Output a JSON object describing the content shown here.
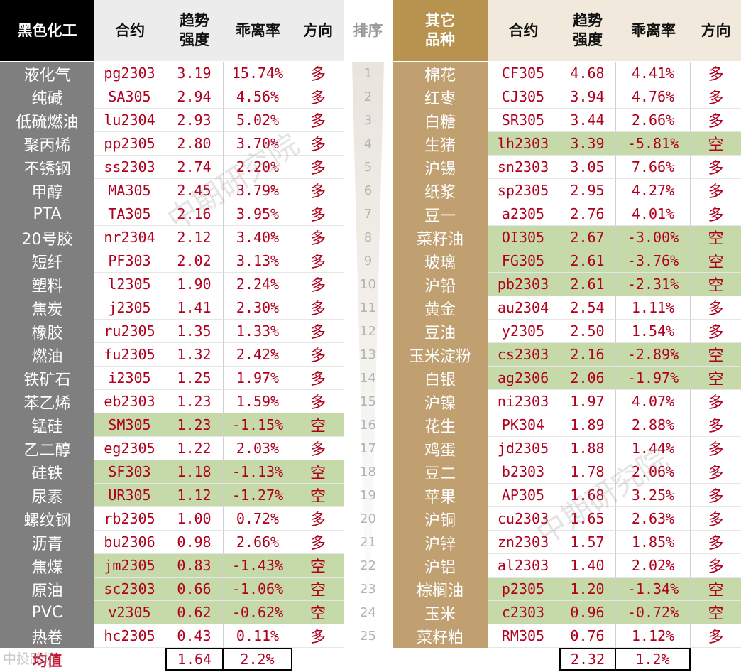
{
  "colors": {
    "accent": "#b0001e",
    "green_highlight": "#c5d9a9",
    "left_name_bg": "#7f7f7f",
    "right_name_bg": "#c0a070",
    "header_left_corner": "#000000",
    "header_right_corner": "#b8934f"
  },
  "headers": {
    "left_title": "黑色化工",
    "contract": "合约",
    "trend_strength": [
      "趋势",
      "强度"
    ],
    "deviation": "乖离率",
    "direction": "方向",
    "rank": "排序",
    "right_title": [
      "其它",
      "品种"
    ]
  },
  "left_rows": [
    {
      "name": "液化气",
      "code": "pg2303",
      "trend": "3.19",
      "dev": "15.74%",
      "dir": "多"
    },
    {
      "name": "纯碱",
      "code": "SA305",
      "trend": "2.94",
      "dev": "4.56%",
      "dir": "多"
    },
    {
      "name": "低硫燃油",
      "code": "lu2304",
      "trend": "2.93",
      "dev": "5.02%",
      "dir": "多"
    },
    {
      "name": "聚丙烯",
      "code": "pp2305",
      "trend": "2.80",
      "dev": "3.70%",
      "dir": "多"
    },
    {
      "name": "不锈钢",
      "code": "ss2303",
      "trend": "2.74",
      "dev": "2.20%",
      "dir": "多"
    },
    {
      "name": "甲醇",
      "code": "MA305",
      "trend": "2.45",
      "dev": "3.79%",
      "dir": "多"
    },
    {
      "name": "PTA",
      "code": "TA305",
      "trend": "2.16",
      "dev": "3.95%",
      "dir": "多"
    },
    {
      "name": "20号胶",
      "code": "nr2304",
      "trend": "2.12",
      "dev": "3.40%",
      "dir": "多"
    },
    {
      "name": "短纤",
      "code": "PF303",
      "trend": "2.02",
      "dev": "3.13%",
      "dir": "多"
    },
    {
      "name": "塑料",
      "code": "l2305",
      "trend": "1.90",
      "dev": "2.24%",
      "dir": "多"
    },
    {
      "name": "焦炭",
      "code": "j2305",
      "trend": "1.41",
      "dev": "2.30%",
      "dir": "多"
    },
    {
      "name": "橡胶",
      "code": "ru2305",
      "trend": "1.35",
      "dev": "1.33%",
      "dir": "多"
    },
    {
      "name": "燃油",
      "code": "fu2305",
      "trend": "1.32",
      "dev": "2.42%",
      "dir": "多"
    },
    {
      "name": "铁矿石",
      "code": "i2305",
      "trend": "1.25",
      "dev": "1.97%",
      "dir": "多"
    },
    {
      "name": "苯乙烯",
      "code": "eb2303",
      "trend": "1.23",
      "dev": "1.59%",
      "dir": "多"
    },
    {
      "name": "锰硅",
      "code": "SM305",
      "trend": "1.23",
      "dev": "-1.15%",
      "dir": "空"
    },
    {
      "name": "乙二醇",
      "code": "eg2305",
      "trend": "1.22",
      "dev": "2.03%",
      "dir": "多"
    },
    {
      "name": "硅铁",
      "code": "SF303",
      "trend": "1.18",
      "dev": "-1.13%",
      "dir": "空"
    },
    {
      "name": "尿素",
      "code": "UR305",
      "trend": "1.12",
      "dev": "-1.27%",
      "dir": "空"
    },
    {
      "name": "螺纹钢",
      "code": "rb2305",
      "trend": "1.00",
      "dev": "0.72%",
      "dir": "多"
    },
    {
      "name": "沥青",
      "code": "bu2306",
      "trend": "0.98",
      "dev": "2.66%",
      "dir": "多"
    },
    {
      "name": "焦煤",
      "code": "jm2305",
      "trend": "0.83",
      "dev": "-1.43%",
      "dir": "空"
    },
    {
      "name": "原油",
      "code": "sc2303",
      "trend": "0.66",
      "dev": "-1.06%",
      "dir": "空"
    },
    {
      "name": "PVC",
      "code": "v2305",
      "trend": "0.62",
      "dev": "-0.62%",
      "dir": "空"
    },
    {
      "name": "热卷",
      "code": "hc2305",
      "trend": "0.43",
      "dev": "0.11%",
      "dir": "多"
    }
  ],
  "right_rows": [
    {
      "name": "棉花",
      "code": "CF305",
      "trend": "4.68",
      "dev": "4.41%",
      "dir": "多"
    },
    {
      "name": "红枣",
      "code": "CJ305",
      "trend": "3.94",
      "dev": "4.76%",
      "dir": "多"
    },
    {
      "name": "白糖",
      "code": "SR305",
      "trend": "3.44",
      "dev": "2.66%",
      "dir": "多"
    },
    {
      "name": "生猪",
      "code": "lh2303",
      "trend": "3.39",
      "dev": "-5.81%",
      "dir": "空"
    },
    {
      "name": "沪锡",
      "code": "sn2303",
      "trend": "3.05",
      "dev": "7.66%",
      "dir": "多"
    },
    {
      "name": "纸浆",
      "code": "sp2305",
      "trend": "2.95",
      "dev": "4.27%",
      "dir": "多"
    },
    {
      "name": "豆一",
      "code": "a2305",
      "trend": "2.76",
      "dev": "4.01%",
      "dir": "多"
    },
    {
      "name": "菜籽油",
      "code": "OI305",
      "trend": "2.67",
      "dev": "-3.00%",
      "dir": "空"
    },
    {
      "name": "玻璃",
      "code": "FG305",
      "trend": "2.61",
      "dev": "-3.76%",
      "dir": "空"
    },
    {
      "name": "沪铅",
      "code": "pb2303",
      "trend": "2.61",
      "dev": "-2.31%",
      "dir": "空"
    },
    {
      "name": "黄金",
      "code": "au2304",
      "trend": "2.54",
      "dev": "1.11%",
      "dir": "多"
    },
    {
      "name": "豆油",
      "code": "y2305",
      "trend": "2.50",
      "dev": "1.54%",
      "dir": "多"
    },
    {
      "name": "玉米淀粉",
      "code": "cs2303",
      "trend": "2.16",
      "dev": "-2.89%",
      "dir": "空"
    },
    {
      "name": "白银",
      "code": "ag2306",
      "trend": "2.06",
      "dev": "-1.97%",
      "dir": "空"
    },
    {
      "name": "沪镍",
      "code": "ni2303",
      "trend": "1.97",
      "dev": "4.07%",
      "dir": "多"
    },
    {
      "name": "花生",
      "code": "PK304",
      "trend": "1.89",
      "dev": "2.88%",
      "dir": "多"
    },
    {
      "name": "鸡蛋",
      "code": "jd2305",
      "trend": "1.88",
      "dev": "1.44%",
      "dir": "多"
    },
    {
      "name": "豆二",
      "code": "b2303",
      "trend": "1.78",
      "dev": "2.06%",
      "dir": "多"
    },
    {
      "name": "苹果",
      "code": "AP305",
      "trend": "1.68",
      "dev": "3.25%",
      "dir": "多"
    },
    {
      "name": "沪铜",
      "code": "cu2303",
      "trend": "1.65",
      "dev": "2.63%",
      "dir": "多"
    },
    {
      "name": "沪锌",
      "code": "zn2303",
      "trend": "1.57",
      "dev": "1.85%",
      "dir": "多"
    },
    {
      "name": "沪铝",
      "code": "al2303",
      "trend": "1.40",
      "dev": "2.02%",
      "dir": "多"
    },
    {
      "name": "棕榈油",
      "code": "p2305",
      "trend": "1.20",
      "dev": "-1.34%",
      "dir": "空"
    },
    {
      "name": "玉米",
      "code": "c2303",
      "trend": "0.96",
      "dev": "-0.72%",
      "dir": "空"
    },
    {
      "name": "菜籽粕",
      "code": "RM305",
      "trend": "0.76",
      "dev": "1.12%",
      "dir": "多"
    }
  ],
  "ranks": [
    "1",
    "2",
    "3",
    "4",
    "5",
    "6",
    "7",
    "8",
    "9",
    "10",
    "11",
    "12",
    "13",
    "14",
    "15",
    "16",
    "17",
    "18",
    "19",
    "20",
    "21",
    "22",
    "23",
    "24",
    "25"
  ],
  "averages": {
    "label": "均值",
    "left_trend": "1.64",
    "left_dev": "2.2%",
    "right_trend": "2.32",
    "right_dev": "1.2%"
  },
  "watermarks": {
    "text": "中期研究院",
    "logo_text": "中投跨境"
  }
}
